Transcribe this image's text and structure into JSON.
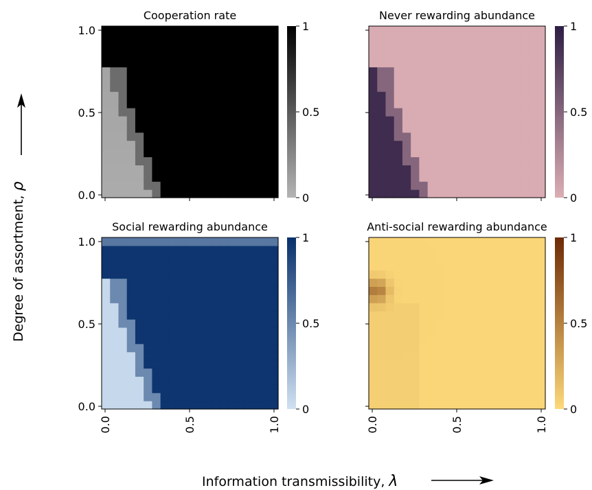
{
  "figure": {
    "xlabel": "Information transmissibility,",
    "xlabel_symbol": "λ",
    "ylabel": "Degree of assortment,",
    "ylabel_symbol": "ρ"
  },
  "chart_data": [
    {
      "type": "heatmap",
      "title": "Cooperation rate",
      "colormap": "greys",
      "cmap_colors": [
        "#b4b4b4",
        "#000000"
      ],
      "colorbar_ticks": [
        "0",
        "0.5",
        "1"
      ],
      "xlim": [
        0,
        1
      ],
      "ylim": [
        0,
        1
      ],
      "x_ticks": [
        "0.0",
        "0.5",
        "1.0"
      ],
      "y_ticks": [
        "0.0",
        "0.5",
        "1.0"
      ],
      "show_xticklabels": false,
      "show_yticklabels": true,
      "grid": "21x21",
      "region_values": {
        "low_region": 0.05,
        "boundary": 0.4,
        "high_region": 1.0
      }
    },
    {
      "type": "heatmap",
      "title": "Never rewarding abundance",
      "colormap": "pink-purple",
      "cmap_colors": [
        "#dcaeb4",
        "#2d1e44"
      ],
      "colorbar_ticks": [
        "0",
        "0.5",
        "1"
      ],
      "xlim": [
        0,
        1
      ],
      "ylim": [
        0,
        1
      ],
      "x_ticks": [
        "0.0",
        "0.5",
        "1.0"
      ],
      "y_ticks": [
        "0.0",
        "0.5",
        "1.0"
      ],
      "show_xticklabels": false,
      "show_yticklabels": false,
      "grid": "21x21",
      "region_values": {
        "low_region": 0.9,
        "boundary": 0.5,
        "high_region": 0.02
      }
    },
    {
      "type": "heatmap",
      "title": "Social rewarding abundance",
      "colormap": "blues",
      "cmap_colors": [
        "#d0e1f2",
        "#08306b"
      ],
      "colorbar_ticks": [
        "0",
        "0.5",
        "1"
      ],
      "xlim": [
        0,
        1
      ],
      "ylim": [
        0,
        1
      ],
      "x_ticks": [
        "0.0",
        "0.5",
        "1.0"
      ],
      "y_ticks": [
        "0.0",
        "0.5",
        "1.0"
      ],
      "show_xticklabels": true,
      "show_yticklabels": true,
      "grid": "21x21",
      "region_values": {
        "low_region": 0.05,
        "boundary": 0.5,
        "high_region": 0.97
      }
    },
    {
      "type": "heatmap",
      "title": "Anti-social rewarding abundance",
      "colormap": "yellow-orange-brown",
      "cmap_colors": [
        "#fdd97a",
        "#6e2a06"
      ],
      "colorbar_ticks": [
        "0",
        "0.5",
        "1"
      ],
      "xlim": [
        0,
        1
      ],
      "ylim": [
        0,
        1
      ],
      "x_ticks": [
        "0.0",
        "0.5",
        "1.0"
      ],
      "y_ticks": [
        "0.0",
        "0.5",
        "1.0"
      ],
      "show_xticklabels": true,
      "show_yticklabels": false,
      "grid": "21x21",
      "region_values": {
        "background": 0.02,
        "hotspot": 0.55
      }
    }
  ]
}
